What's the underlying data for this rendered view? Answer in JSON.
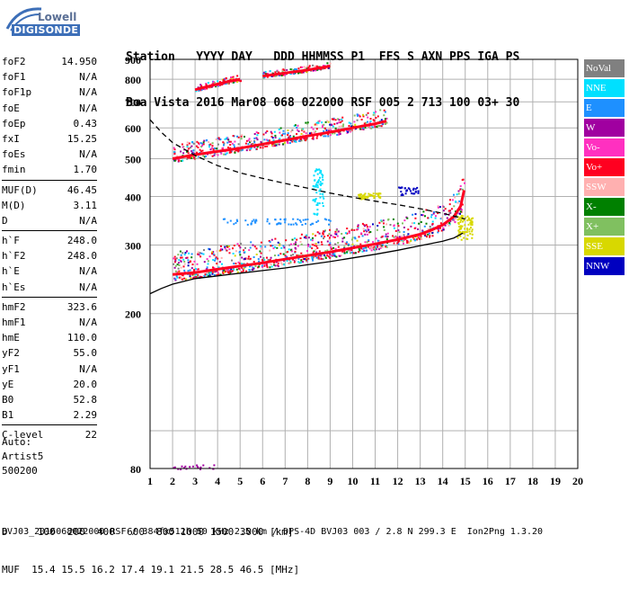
{
  "logo": {
    "brand": "Lowell",
    "product": "DIGISONDE"
  },
  "header": {
    "line1": "Station   YYYY DAY   DDD HHMMSS P1  FFS S AXN PPS IGA PS",
    "line2": "Boa Vista 2016 Mar08 068 022000 RSF 005 2 713 100 03+ 30"
  },
  "params": [
    {
      "key": "foF2",
      "value": "14.950"
    },
    {
      "key": "foF1",
      "value": "N/A"
    },
    {
      "key": "foF1p",
      "value": "N/A"
    },
    {
      "key": "foE",
      "value": "N/A"
    },
    {
      "key": "foEp",
      "value": "0.43"
    },
    {
      "key": "fxI",
      "value": "15.25"
    },
    {
      "key": "foEs",
      "value": "N/A"
    },
    {
      "key": "fmin",
      "value": "1.70"
    },
    {
      "key": "MUF(D)",
      "value": "46.45"
    },
    {
      "key": "M(D)",
      "value": "3.11"
    },
    {
      "key": "D",
      "value": "N/A"
    },
    {
      "key": "h`F",
      "value": "248.0"
    },
    {
      "key": "h`F2",
      "value": "248.0"
    },
    {
      "key": "h`E",
      "value": "N/A"
    },
    {
      "key": "h`Es",
      "value": "N/A"
    },
    {
      "key": "hmF2",
      "value": "323.6"
    },
    {
      "key": "hmF1",
      "value": "N/A"
    },
    {
      "key": "hmE",
      "value": "110.0"
    },
    {
      "key": "yF2",
      "value": "55.0"
    },
    {
      "key": "yF1",
      "value": "N/A"
    },
    {
      "key": "yE",
      "value": "20.0"
    },
    {
      "key": "B0",
      "value": "52.8"
    },
    {
      "key": "B1",
      "value": "2.29"
    },
    {
      "key": "C-level",
      "value": "22"
    }
  ],
  "auto": {
    "line1": "Auto:",
    "line2": "Artist5",
    "line3": "500200"
  },
  "distance": {
    "line1": "D     100  200  400  600  800 1000 1500 3000 [km]",
    "line2": "MUF  15.4 15.5 16.2 17.4 19.1 21.5 28.5 46.5 [MHz]"
  },
  "footer": "BVJ03_2016068022000.RSF / 384fx512h 50 kHz 2.5 km / DPS-4D BVJ03 003 / 2.8 N 299.3 E  Ion2Png 1.3.20",
  "legend": [
    {
      "label": "NoVal",
      "color": "#808080"
    },
    {
      "label": "NNE",
      "color": "#00e0ff"
    },
    {
      "label": "E",
      "color": "#1e90ff"
    },
    {
      "label": "W",
      "color": "#a000a0"
    },
    {
      "label": "Vo-",
      "color": "#ff30c0"
    },
    {
      "label": "Vo+",
      "color": "#ff0020"
    },
    {
      "label": "SSW",
      "color": "#ffb0b0"
    },
    {
      "label": "X-",
      "color": "#008000"
    },
    {
      "label": "X+",
      "color": "#80c060"
    },
    {
      "label": "SSE",
      "color": "#d8d800"
    },
    {
      "label": "NNW",
      "color": "#0000c0"
    }
  ],
  "chart_data": {
    "type": "scatter",
    "title": "",
    "xlabel": "",
    "ylabel": "",
    "xlim": [
      1,
      20
    ],
    "ylim": [
      80,
      900
    ],
    "x_ticks": [
      1,
      2,
      3,
      4,
      5,
      6,
      7,
      8,
      9,
      10,
      11,
      12,
      13,
      14,
      15,
      16,
      17,
      18,
      19,
      20
    ],
    "y_ticks": [
      80,
      200,
      300,
      400,
      500,
      600,
      700,
      800,
      900
    ],
    "y_scale": "log",
    "grid": true,
    "traces": [
      {
        "name": "ordinary F2 trace (Vo+)",
        "color": "#ff0020",
        "points": [
          [
            2.0,
            252
          ],
          [
            3.0,
            255
          ],
          [
            4.0,
            260
          ],
          [
            5.0,
            265
          ],
          [
            6.0,
            270
          ],
          [
            7.0,
            276
          ],
          [
            8.0,
            282
          ],
          [
            9.0,
            288
          ],
          [
            10.0,
            295
          ],
          [
            11.0,
            302
          ],
          [
            12.0,
            310
          ],
          [
            13.0,
            320
          ],
          [
            13.5,
            328
          ],
          [
            14.0,
            338
          ],
          [
            14.5,
            355
          ],
          [
            14.8,
            378
          ],
          [
            14.95,
            415
          ]
        ]
      },
      {
        "name": "second hop trace",
        "color": "#ff0020",
        "points": [
          [
            2.0,
            500
          ],
          [
            3.0,
            512
          ],
          [
            4.0,
            522
          ],
          [
            5.0,
            532
          ],
          [
            6.0,
            545
          ],
          [
            7.0,
            558
          ],
          [
            8.0,
            572
          ],
          [
            9.0,
            585
          ],
          [
            10.0,
            600
          ],
          [
            11.0,
            615
          ],
          [
            11.5,
            625
          ]
        ]
      },
      {
        "name": "third hop trace",
        "color": "#ff0020",
        "points": [
          [
            3.0,
            752
          ],
          [
            3.5,
            765
          ],
          [
            4.0,
            778
          ],
          [
            4.5,
            790
          ],
          [
            5.0,
            800
          ]
        ]
      },
      {
        "name": "fourth hop trace",
        "color": "#ff0020",
        "points": [
          [
            6.0,
            815
          ],
          [
            7.0,
            830
          ],
          [
            8.0,
            845
          ],
          [
            9.0,
            865
          ]
        ]
      }
    ],
    "profile_line": {
      "style": "solid",
      "points": [
        [
          1.0,
          225
        ],
        [
          1.5,
          232
        ],
        [
          2.0,
          238
        ],
        [
          3.0,
          246
        ],
        [
          4.0,
          250
        ],
        [
          5.0,
          254
        ],
        [
          6.0,
          258
        ],
        [
          7.0,
          262
        ],
        [
          8.0,
          267
        ],
        [
          9.0,
          272
        ],
        [
          10.0,
          278
        ],
        [
          11.0,
          284
        ],
        [
          12.0,
          291
        ],
        [
          13.0,
          299
        ],
        [
          14.0,
          307
        ],
        [
          14.5,
          313
        ],
        [
          14.9,
          322
        ]
      ]
    },
    "muf_line": {
      "style": "dashed",
      "points": [
        [
          1.0,
          630
        ],
        [
          1.5,
          585
        ],
        [
          2.0,
          550
        ],
        [
          3.0,
          510
        ],
        [
          4.0,
          480
        ],
        [
          5.0,
          460
        ],
        [
          6.0,
          445
        ],
        [
          7.0,
          432
        ],
        [
          8.0,
          420
        ],
        [
          9.0,
          408
        ],
        [
          10.0,
          398
        ],
        [
          11.0,
          389
        ],
        [
          12.0,
          381
        ],
        [
          13.0,
          372
        ],
        [
          14.0,
          362
        ],
        [
          15.0,
          350
        ]
      ]
    }
  }
}
